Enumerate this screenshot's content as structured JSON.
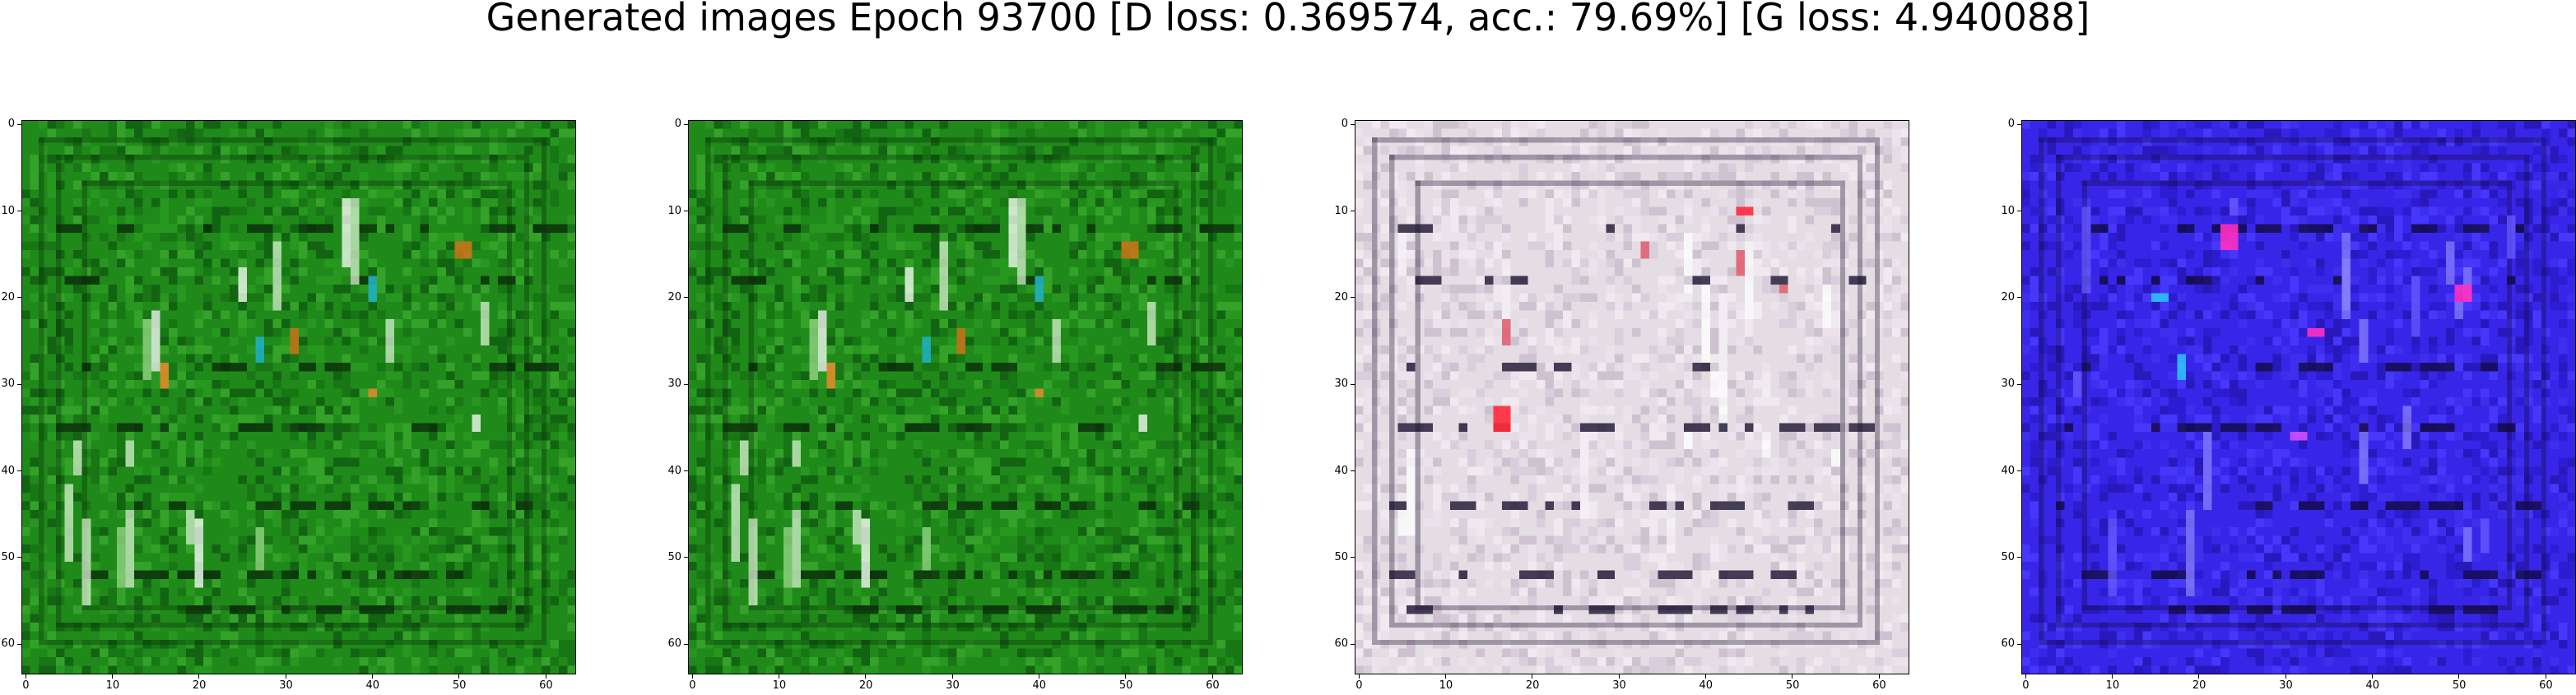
{
  "figure": {
    "title": "Generated images Epoch 93700 [D loss: 0.369574, acc.: 79.69%] [G loss: 4.940088]"
  },
  "axes": {
    "x_ticks": [
      "0",
      "10",
      "20",
      "30",
      "40",
      "50",
      "60"
    ],
    "y_ticks": [
      "0",
      "10",
      "20",
      "30",
      "40",
      "50",
      "60"
    ]
  },
  "panels": [
    {
      "name": "generated-image-1",
      "base_color": "#1f8a1a",
      "theme": "green"
    },
    {
      "name": "generated-image-2",
      "base_color": "#1f8a1a",
      "theme": "green"
    },
    {
      "name": "generated-image-3",
      "base_color": "#e4dde4",
      "theme": "pale"
    },
    {
      "name": "generated-image-4",
      "base_color": "#3826e8",
      "theme": "blue"
    }
  ]
}
